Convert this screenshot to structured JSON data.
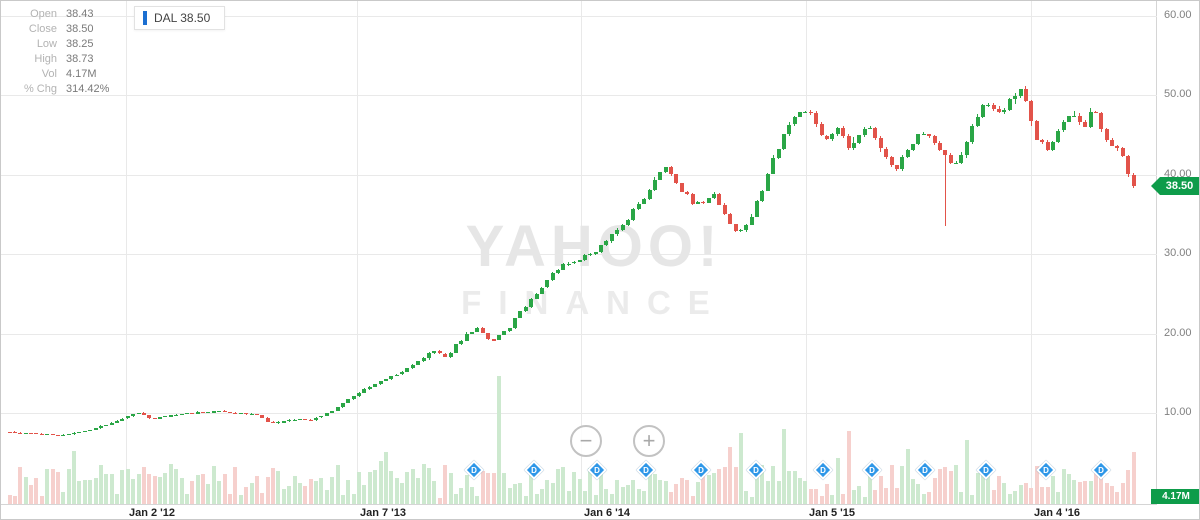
{
  "legend": {
    "symbol_label": "DAL 38.50"
  },
  "watermark": {
    "line1": "YAHOO!",
    "line2": "FINANCE"
  },
  "controls": {
    "zoom_out": "−",
    "zoom_in": "+"
  },
  "badges": {
    "price": "38.50",
    "volume": "4.17M"
  },
  "info_panel": {
    "rows": [
      {
        "label": "Open",
        "value": "38.43"
      },
      {
        "label": "Close",
        "value": "38.50"
      },
      {
        "label": "Low",
        "value": "38.25"
      },
      {
        "label": "High",
        "value": "38.73"
      },
      {
        "label": "Vol",
        "value": "4.17M"
      },
      {
        "label": "% Chg",
        "value": "314.42%"
      }
    ]
  },
  "chart_data": {
    "type": "candlestick",
    "symbol": "DAL",
    "title": "DAL daily candlestick chart with volume, 2011–2016",
    "open": 38.43,
    "close": 38.5,
    "low": 38.25,
    "high": 38.73,
    "volume": "4.17M",
    "pct_change": "314.42%",
    "last_close": 38.5,
    "ylim": [
      0,
      60
    ],
    "y_ticks": [
      60,
      50,
      40,
      30,
      20,
      10
    ],
    "x_ticks": [
      {
        "f": 0.102,
        "label": "Jan 2 '12"
      },
      {
        "f": 0.303,
        "label": "Jan 7 '13"
      },
      {
        "f": 0.499,
        "label": "Jan 6 '14"
      },
      {
        "f": 0.695,
        "label": "Jan 5 '15"
      },
      {
        "f": 0.891,
        "label": "Jan 4 '16"
      }
    ],
    "close_anchors": [
      [
        0.002,
        7.6
      ],
      [
        0.028,
        7.3
      ],
      [
        0.045,
        7.2
      ],
      [
        0.071,
        7.9
      ],
      [
        0.098,
        9.2
      ],
      [
        0.111,
        10.2
      ],
      [
        0.124,
        9.2
      ],
      [
        0.137,
        9.7
      ],
      [
        0.154,
        9.9
      ],
      [
        0.176,
        10.2
      ],
      [
        0.198,
        10.0
      ],
      [
        0.215,
        9.8
      ],
      [
        0.228,
        8.7
      ],
      [
        0.246,
        9.2
      ],
      [
        0.263,
        9.1
      ],
      [
        0.281,
        10.3
      ],
      [
        0.303,
        12.5
      ],
      [
        0.32,
        13.8
      ],
      [
        0.337,
        14.8
      ],
      [
        0.355,
        16.3
      ],
      [
        0.368,
        17.8
      ],
      [
        0.381,
        17.0
      ],
      [
        0.394,
        19.3
      ],
      [
        0.407,
        20.7
      ],
      [
        0.42,
        19.0
      ],
      [
        0.433,
        20.3
      ],
      [
        0.446,
        22.8
      ],
      [
        0.464,
        26.0
      ],
      [
        0.481,
        28.5
      ],
      [
        0.499,
        29.5
      ],
      [
        0.516,
        31.0
      ],
      [
        0.529,
        33.0
      ],
      [
        0.542,
        35.0
      ],
      [
        0.555,
        37.5
      ],
      [
        0.566,
        40.5
      ],
      [
        0.572,
        41.0
      ],
      [
        0.582,
        39.0
      ],
      [
        0.592,
        37.0
      ],
      [
        0.603,
        36.0
      ],
      [
        0.614,
        37.5
      ],
      [
        0.625,
        35.0
      ],
      [
        0.634,
        32.3
      ],
      [
        0.645,
        34.0
      ],
      [
        0.657,
        38.5
      ],
      [
        0.669,
        43.0
      ],
      [
        0.682,
        46.5
      ],
      [
        0.69,
        48.5
      ],
      [
        0.701,
        47.0
      ],
      [
        0.71,
        44.5
      ],
      [
        0.721,
        45.8
      ],
      [
        0.734,
        43.2
      ],
      [
        0.747,
        46.2
      ],
      [
        0.76,
        43.0
      ],
      [
        0.773,
        40.5
      ],
      [
        0.786,
        43.8
      ],
      [
        0.799,
        45.6
      ],
      [
        0.813,
        43.0
      ],
      [
        0.826,
        41.0
      ],
      [
        0.839,
        46.0
      ],
      [
        0.852,
        49.4
      ],
      [
        0.865,
        47.4
      ],
      [
        0.875,
        50.0
      ],
      [
        0.884,
        50.8
      ],
      [
        0.895,
        44.0
      ],
      [
        0.907,
        43.4
      ],
      [
        0.917,
        46.6
      ],
      [
        0.928,
        47.8
      ],
      [
        0.936,
        45.8
      ],
      [
        0.945,
        48.4
      ],
      [
        0.954,
        45.2
      ],
      [
        0.963,
        43.6
      ],
      [
        0.971,
        42.0
      ],
      [
        0.98,
        38.5
      ]
    ],
    "candle_count": 210,
    "special_wick": {
      "f": 0.816,
      "low": 33.5
    },
    "volume_spike_fraction": 0.426,
    "dividend_label": "D",
    "dividend_fractions": [
      0.405,
      0.458,
      0.513,
      0.555,
      0.603,
      0.651,
      0.71,
      0.752,
      0.799,
      0.852,
      0.904,
      0.952
    ],
    "legend_position": "top-left",
    "grid": true,
    "colors": {
      "up": "#2aa646",
      "down": "#e2534a",
      "vol_up": "#cde9cf",
      "vol_down": "#f6d0cd",
      "grid": "#e9e9e9",
      "badge": "#0e9c4a",
      "dividend": "#2e97e8",
      "legend_marker": "#1c6fd1"
    }
  }
}
